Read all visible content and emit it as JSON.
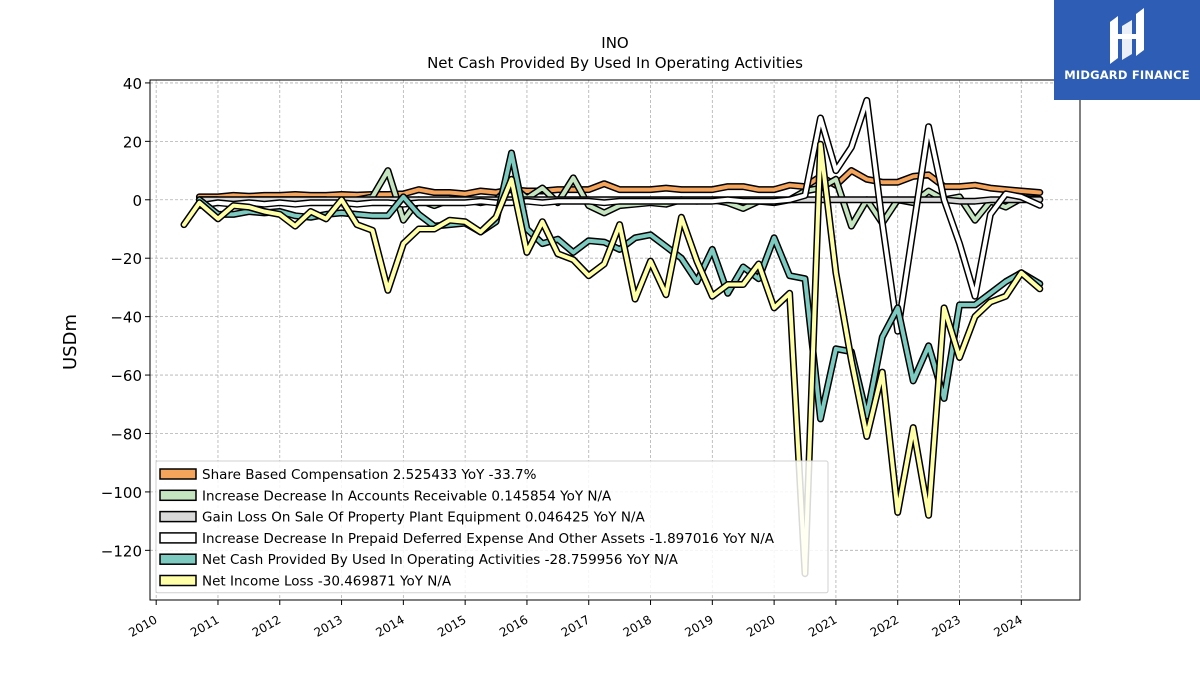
{
  "chart_data": {
    "type": "line",
    "title": "INO",
    "subtitle": "Net Cash Provided By Used In Operating Activities",
    "ylabel": "USDm",
    "xlabel": "",
    "ylim": [
      -137,
      41
    ],
    "xlim": [
      2009.9,
      2024.95
    ],
    "grid": true,
    "legend_position": "lower-left",
    "yticks": [
      40,
      20,
      0,
      -20,
      -40,
      -60,
      -80,
      -100,
      -120
    ],
    "xticks": [
      "2010",
      "2011",
      "2012",
      "2013",
      "2014",
      "2015",
      "2016",
      "2017",
      "2018",
      "2019",
      "2020",
      "2021",
      "2022",
      "2023",
      "2024"
    ],
    "series": [
      {
        "name": "Share Based Compensation",
        "legend": "Share Based Compensation  2.525433 YoY -33.7%",
        "color": "#f5a45c",
        "x": [
          2010.7,
          2011.0,
          2011.25,
          2011.5,
          2011.75,
          2012.0,
          2012.25,
          2012.5,
          2012.75,
          2013.0,
          2013.25,
          2013.5,
          2013.75,
          2014.0,
          2014.25,
          2014.5,
          2014.75,
          2015.0,
          2015.25,
          2015.5,
          2015.75,
          2016.0,
          2016.25,
          2016.5,
          2016.75,
          2017.0,
          2017.25,
          2017.5,
          2017.75,
          2018.0,
          2018.25,
          2018.5,
          2018.75,
          2019.0,
          2019.25,
          2019.5,
          2019.75,
          2020.0,
          2020.25,
          2020.5,
          2020.75,
          2021.0,
          2021.25,
          2021.5,
          2021.75,
          2022.0,
          2022.25,
          2022.5,
          2022.75,
          2023.0,
          2023.25,
          2023.5,
          2023.75,
          2024.0,
          2024.3
        ],
        "values": [
          1.0,
          1.0,
          1.5,
          1.2,
          1.5,
          1.5,
          1.8,
          1.5,
          1.5,
          1.8,
          1.6,
          1.8,
          1.8,
          2.0,
          3.5,
          2.5,
          2.5,
          2.0,
          3.0,
          2.5,
          3.5,
          3.0,
          3.0,
          3.5,
          3.5,
          3.5,
          5.5,
          3.5,
          3.5,
          3.5,
          4.0,
          3.5,
          3.5,
          3.5,
          4.5,
          4.5,
          3.5,
          3.5,
          5.0,
          4.5,
          8.0,
          5.0,
          10.0,
          7.0,
          6.0,
          6.0,
          8.0,
          8.5,
          4.5,
          4.5,
          5.0,
          4.0,
          3.5,
          3.0,
          2.5
        ]
      },
      {
        "name": "Increase Decrease In Accounts Receivable",
        "legend": "Increase Decrease In Accounts Receivable  0.145854 YoY N/A",
        "color": "#c5e5c0",
        "x": [
          2010.7,
          2011.0,
          2011.25,
          2011.5,
          2011.75,
          2012.0,
          2012.25,
          2012.5,
          2012.75,
          2013.0,
          2013.25,
          2013.5,
          2013.75,
          2014.0,
          2014.25,
          2014.5,
          2014.75,
          2015.0,
          2015.25,
          2015.5,
          2015.75,
          2016.0,
          2016.25,
          2016.5,
          2016.75,
          2017.0,
          2017.25,
          2017.5,
          2017.75,
          2018.0,
          2018.25,
          2018.5,
          2018.75,
          2019.0,
          2019.25,
          2019.5,
          2019.75,
          2020.0,
          2020.25,
          2020.5,
          2020.75,
          2021.0,
          2021.25,
          2021.5,
          2021.75,
          2022.0,
          2022.25,
          2022.5,
          2022.75,
          2023.0,
          2023.25,
          2023.5,
          2023.75,
          2024.0,
          2024.3
        ],
        "values": [
          0.0,
          0.0,
          -0.5,
          0.0,
          0.0,
          0.0,
          0.0,
          0.0,
          0.0,
          -0.5,
          0.0,
          1.0,
          10.0,
          -7.0,
          0.0,
          -2.0,
          0.0,
          0.0,
          -1.0,
          0.0,
          5.0,
          0.5,
          4.0,
          -1.0,
          7.5,
          -2.0,
          -4.5,
          -2.0,
          -1.5,
          -1.0,
          -1.5,
          0.0,
          -0.5,
          0.0,
          -1.0,
          -3.0,
          -0.5,
          -1.0,
          0.0,
          3.0,
          4.0,
          7.0,
          -9.0,
          0.0,
          -8.0,
          0.0,
          -1.0,
          3.0,
          0.0,
          1.0,
          -7.0,
          -0.5,
          -2.5,
          0.5,
          0.15
        ]
      },
      {
        "name": "Gain Loss On Sale Of Property Plant Equipment",
        "legend": "Gain Loss On Sale Of Property Plant Equipment  0.046425 YoY N/A",
        "color": "#d9d9d9",
        "x": [
          2010.7,
          2011.0,
          2011.25,
          2011.5,
          2011.75,
          2012.0,
          2012.25,
          2012.5,
          2012.75,
          2013.0,
          2013.25,
          2013.5,
          2013.75,
          2014.0,
          2014.25,
          2014.5,
          2014.75,
          2015.0,
          2015.25,
          2015.5,
          2015.75,
          2016.0,
          2016.25,
          2016.5,
          2016.75,
          2017.0,
          2017.25,
          2017.5,
          2017.75,
          2018.0,
          2018.25,
          2018.5,
          2018.75,
          2019.0,
          2019.25,
          2019.5,
          2019.75,
          2020.0,
          2020.25,
          2020.5,
          2020.75,
          2021.0,
          2021.25,
          2021.5,
          2021.75,
          2022.0,
          2022.25,
          2022.5,
          2022.75,
          2023.0,
          2023.25,
          2023.5,
          2023.75,
          2024.0,
          2024.3
        ],
        "values": [
          0.0,
          0.0,
          0.0,
          0.0,
          0.0,
          0.0,
          0.0,
          0.0,
          0.0,
          0.0,
          0.0,
          0.0,
          0.0,
          0.0,
          0.0,
          0.0,
          0.0,
          0.0,
          0.0,
          0.0,
          0.0,
          0.0,
          0.0,
          0.0,
          0.0,
          0.0,
          0.0,
          0.0,
          0.0,
          0.0,
          0.0,
          0.0,
          0.0,
          0.0,
          0.0,
          0.0,
          0.0,
          0.0,
          0.0,
          0.0,
          0.0,
          0.0,
          0.0,
          0.0,
          0.0,
          0.0,
          0.0,
          0.0,
          0.0,
          -0.5,
          -0.5,
          0.0,
          0.0,
          0.0,
          0.05
        ]
      },
      {
        "name": "Increase Decrease In Prepaid Deferred Expense And Other Assets",
        "legend": "Increase Decrease In Prepaid Deferred Expense And Other Assets  -1.897016 YoY N/A",
        "color": "#ffffff",
        "x": [
          2010.7,
          2011.0,
          2011.25,
          2011.5,
          2011.75,
          2012.0,
          2012.25,
          2012.5,
          2012.75,
          2013.0,
          2013.25,
          2013.5,
          2013.75,
          2014.0,
          2014.25,
          2014.5,
          2014.75,
          2015.0,
          2015.25,
          2015.5,
          2015.75,
          2016.0,
          2016.25,
          2016.5,
          2016.75,
          2017.0,
          2017.25,
          2017.5,
          2017.75,
          2018.0,
          2018.25,
          2018.5,
          2018.75,
          2019.0,
          2019.25,
          2019.5,
          2019.75,
          2020.0,
          2020.25,
          2020.5,
          2020.75,
          2021.0,
          2021.25,
          2021.5,
          2021.75,
          2022.0,
          2022.25,
          2022.5,
          2022.75,
          2023.0,
          2023.25,
          2023.5,
          2023.75,
          2024.0,
          2024.3
        ],
        "values": [
          -2.0,
          -1.0,
          -1.5,
          -1.0,
          -1.5,
          -1.0,
          -1.5,
          -1.0,
          -1.0,
          -1.0,
          -1.5,
          -1.0,
          -1.0,
          -1.5,
          -1.0,
          -1.0,
          -1.0,
          -1.0,
          -0.5,
          -1.0,
          -1.0,
          -0.5,
          -1.0,
          -0.5,
          -0.5,
          -0.5,
          -1.0,
          -0.5,
          -0.5,
          -0.5,
          -0.5,
          -0.5,
          -0.5,
          -0.5,
          0.0,
          -0.5,
          -0.5,
          -0.5,
          0.0,
          1.5,
          28.0,
          10.0,
          18.0,
          34.0,
          -8.0,
          -45.0,
          -10.0,
          25.0,
          0.0,
          -15.0,
          -33.0,
          -5.0,
          2.0,
          1.0,
          -1.9
        ]
      },
      {
        "name": "Net Cash Provided By Used In Operating Activities",
        "legend": "Net Cash Provided By Used In Operating Activities  -28.759956 YoY N/A",
        "color": "#7dcbc0",
        "x": [
          2010.7,
          2011.0,
          2011.25,
          2011.5,
          2011.75,
          2012.0,
          2012.25,
          2012.5,
          2012.75,
          2013.0,
          2013.25,
          2013.5,
          2013.75,
          2014.0,
          2014.25,
          2014.5,
          2014.75,
          2015.0,
          2015.25,
          2015.5,
          2015.75,
          2016.0,
          2016.25,
          2016.5,
          2016.75,
          2017.0,
          2017.25,
          2017.5,
          2017.75,
          2018.0,
          2018.25,
          2018.5,
          2018.75,
          2019.0,
          2019.25,
          2019.5,
          2019.75,
          2020.0,
          2020.25,
          2020.5,
          2020.75,
          2021.0,
          2021.25,
          2021.5,
          2021.75,
          2022.0,
          2022.25,
          2022.5,
          2022.75,
          2023.0,
          2023.25,
          2023.5,
          2023.75,
          2024.0,
          2024.3
        ],
        "values": [
          0.0,
          -5.0,
          -5.0,
          -4.0,
          -4.5,
          -4.0,
          -5.5,
          -6.0,
          -5.0,
          -4.5,
          -5.0,
          -5.5,
          -5.5,
          1.0,
          -5.0,
          -9.0,
          -8.5,
          -8.0,
          -11.0,
          -7.5,
          16.0,
          -10.0,
          -15.0,
          -13.5,
          -18.0,
          -14.0,
          -14.5,
          -17.0,
          -13.0,
          -12.0,
          -16.0,
          -20.0,
          -28.0,
          -17.0,
          -32.0,
          -23.0,
          -27.0,
          -13.0,
          -26.0,
          -27.0,
          -75.0,
          -51.0,
          -52.0,
          -74.0,
          -47.0,
          -37.0,
          -62.0,
          -50.0,
          -68.0,
          -36.0,
          -36.0,
          -32.0,
          -28.0,
          -25.0,
          -28.76
        ]
      },
      {
        "name": "Net Income Loss",
        "legend": "Net Income Loss  -30.469871 YoY N/A",
        "color": "#ffffa8",
        "x": [
          2010.45,
          2010.7,
          2011.0,
          2011.25,
          2011.5,
          2011.75,
          2012.0,
          2012.25,
          2012.5,
          2012.75,
          2013.0,
          2013.25,
          2013.5,
          2013.75,
          2014.0,
          2014.25,
          2014.5,
          2014.75,
          2015.0,
          2015.25,
          2015.5,
          2015.75,
          2016.0,
          2016.25,
          2016.5,
          2016.75,
          2017.0,
          2017.25,
          2017.5,
          2017.75,
          2018.0,
          2018.25,
          2018.5,
          2018.75,
          2019.0,
          2019.25,
          2019.5,
          2019.75,
          2020.0,
          2020.25,
          2020.5,
          2020.75,
          2021.0,
          2021.25,
          2021.5,
          2021.75,
          2022.0,
          2022.25,
          2022.5,
          2022.75,
          2023.0,
          2023.25,
          2023.5,
          2023.75,
          2024.0,
          2024.3
        ],
        "values": [
          -8.5,
          -1.0,
          -6.5,
          -2.0,
          -2.5,
          -4.0,
          -5.0,
          -9.0,
          -4.0,
          -6.5,
          0.0,
          -8.5,
          -10.5,
          -31.0,
          -15.0,
          -10.0,
          -10.0,
          -7.0,
          -7.5,
          -11.0,
          -6.0,
          7.0,
          -18.0,
          -7.5,
          -18.5,
          -20.5,
          -26.0,
          -22.0,
          -8.5,
          -34.0,
          -21.0,
          -32.5,
          -6.0,
          -21.0,
          -33.0,
          -29.0,
          -29.0,
          -22.0,
          -37.0,
          -32.0,
          -128.0,
          19.0,
          -25.0,
          -55.0,
          -81.0,
          -59.0,
          -107.0,
          -78.0,
          -108.0,
          -37.0,
          -54.0,
          -40.0,
          -35.0,
          -33.0,
          -25.0,
          -30.47
        ]
      }
    ]
  },
  "brand": {
    "name": "MIDGARD FINANCE",
    "color": "#2d5db4"
  }
}
